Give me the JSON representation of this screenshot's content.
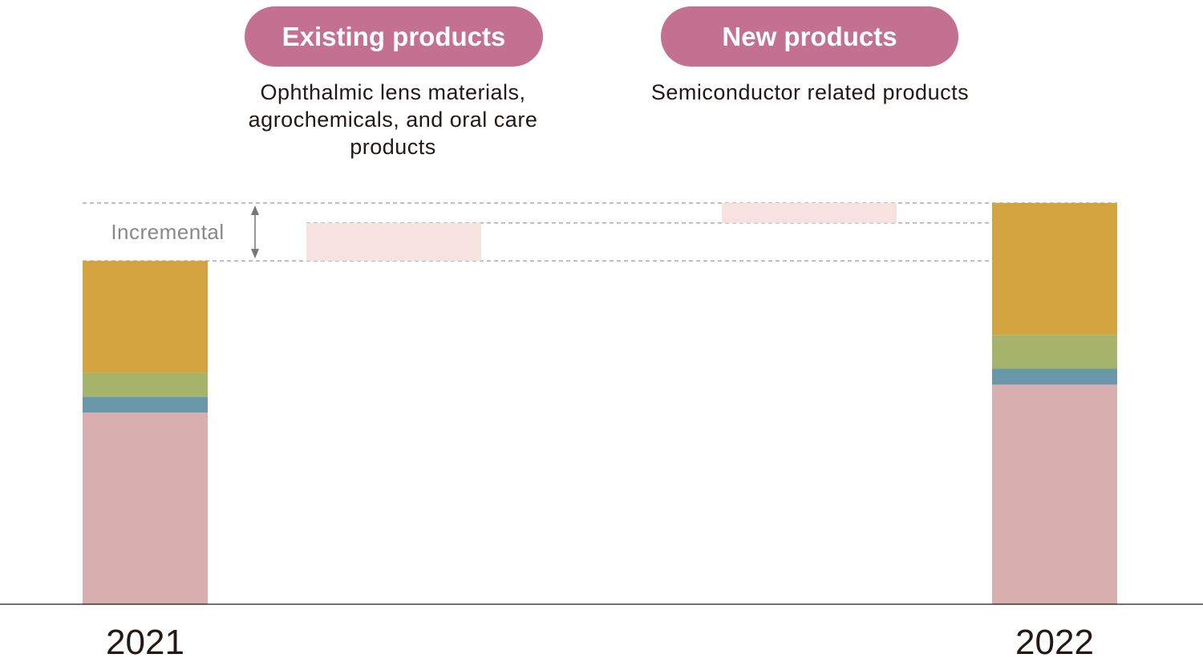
{
  "colors": {
    "pill": "#c47090",
    "segments": [
      "#d8aeae",
      "#6a97aa",
      "#a5b46a",
      "#d2a33f"
    ],
    "increment": "#f6e2df",
    "guide": "#9a9a9a",
    "arrow": "#777777",
    "baseline": "#231815",
    "text": "#231815",
    "muted": "#888888"
  },
  "header": {
    "existing_label": "Existing products",
    "existing_desc": "Ophthalmic lens materials, agrochemicals, and oral care products",
    "new_label": "New products",
    "new_desc": "Semiconductor related products"
  },
  "chart_data": {
    "type": "bar",
    "categories": [
      "2021",
      "2022"
    ],
    "stacked": true,
    "segment_values": {
      "2021": [
        48,
        4,
        6,
        28
      ],
      "2022": [
        55,
        4,
        8.5,
        33
      ]
    },
    "increments": [
      {
        "label": "Existing products",
        "from": 86,
        "to": 95.5
      },
      {
        "label": "New products",
        "from": 95.5,
        "to": 100.5
      }
    ],
    "incremental_label": "Incremental",
    "ylim": [
      0,
      100.5
    ]
  }
}
